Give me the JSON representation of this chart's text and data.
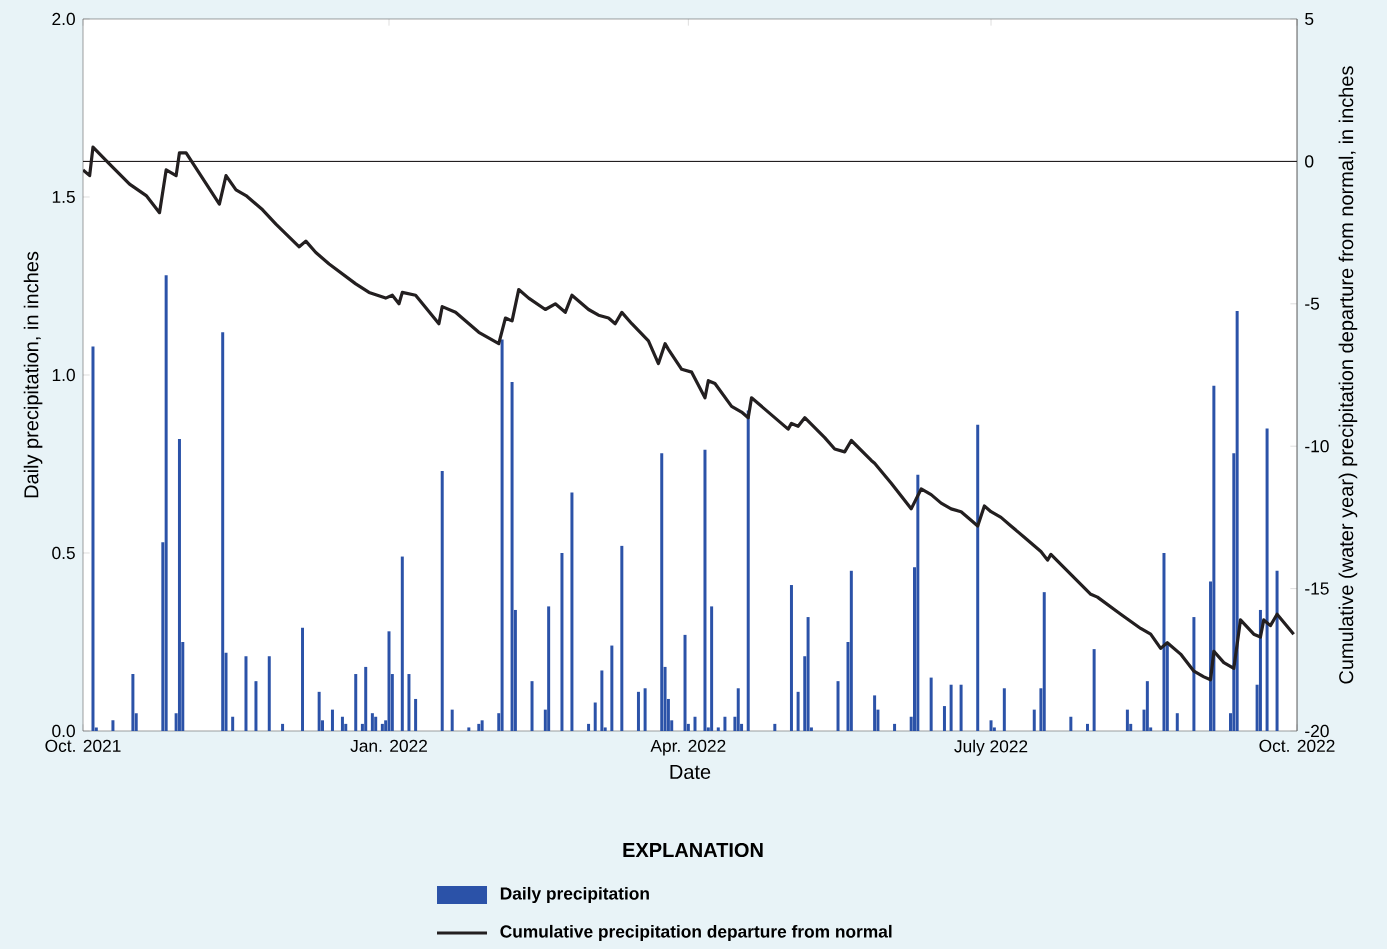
{
  "chart_data": {
    "type": "bar",
    "xlabel": "Date",
    "ylabel": "Daily precipitation, in inches",
    "y2label": "Cumulative (water year) precipitation departure from normal, in inches",
    "legend_title": "EXPLANATION",
    "legend": "bottom",
    "xlim": [
      "2021-10-01",
      "2022-10-01"
    ],
    "xticks": [
      {
        "value": "2021-10-01",
        "label": "Oct. 2021"
      },
      {
        "value": "2022-01-01",
        "label": "Jan. 2022"
      },
      {
        "value": "2022-04-01",
        "label": "Apr. 2022"
      },
      {
        "value": "2022-07-01",
        "label": "July 2022"
      },
      {
        "value": "2022-10-01",
        "label": "Oct. 2022"
      }
    ],
    "ylim": [
      0,
      2
    ],
    "yticks": [
      {
        "value": 0,
        "label": "0.0"
      },
      {
        "value": 0.5,
        "label": "0.5"
      },
      {
        "value": 1,
        "label": "1.0"
      },
      {
        "value": 1.5,
        "label": "1.5"
      },
      {
        "value": 2,
        "label": "2.0"
      }
    ],
    "y2lim": [
      -20,
      5
    ],
    "y2ticks": [
      -20,
      -15,
      -10,
      -5,
      0,
      5
    ],
    "ref_lines": [
      {
        "axis": "y2",
        "value": 0,
        "color": "#231f20"
      }
    ],
    "series": [
      {
        "name": "Daily precipitation",
        "color": "#2b52a8",
        "x": [
          "2021-10-04",
          "2021-10-05",
          "2021-10-10",
          "2021-10-16",
          "2021-10-17",
          "2021-10-25",
          "2021-10-26",
          "2021-10-29",
          "2021-10-30",
          "2021-10-31",
          "2021-11-12",
          "2021-11-13",
          "2021-11-15",
          "2021-11-19",
          "2021-11-22",
          "2021-11-26",
          "2021-11-30",
          "2021-12-06",
          "2021-12-11",
          "2021-12-12",
          "2021-12-15",
          "2021-12-18",
          "2021-12-19",
          "2021-12-22",
          "2021-12-24",
          "2021-12-25",
          "2021-12-27",
          "2021-12-28",
          "2021-12-30",
          "2021-12-31",
          "2022-01-01",
          "2022-01-02",
          "2022-01-05",
          "2022-01-07",
          "2022-01-09",
          "2022-01-17",
          "2022-01-20",
          "2022-01-25",
          "2022-01-28",
          "2022-01-29",
          "2022-02-03",
          "2022-02-04",
          "2022-02-07",
          "2022-02-08",
          "2022-02-13",
          "2022-02-17",
          "2022-02-18",
          "2022-02-22",
          "2022-02-25",
          "2022-03-02",
          "2022-03-04",
          "2022-03-06",
          "2022-03-07",
          "2022-03-09",
          "2022-03-12",
          "2022-03-17",
          "2022-03-19",
          "2022-03-24",
          "2022-03-25",
          "2022-03-26",
          "2022-03-27",
          "2022-03-31",
          "2022-04-01",
          "2022-04-03",
          "2022-04-06",
          "2022-04-07",
          "2022-04-08",
          "2022-04-10",
          "2022-04-12",
          "2022-04-15",
          "2022-04-16",
          "2022-04-17",
          "2022-04-19",
          "2022-04-27",
          "2022-05-02",
          "2022-05-04",
          "2022-05-06",
          "2022-05-07",
          "2022-05-08",
          "2022-05-16",
          "2022-05-19",
          "2022-05-20",
          "2022-05-27",
          "2022-05-28",
          "2022-06-02",
          "2022-06-07",
          "2022-06-08",
          "2022-06-09",
          "2022-06-13",
          "2022-06-17",
          "2022-06-19",
          "2022-06-22",
          "2022-06-27",
          "2022-07-01",
          "2022-07-02",
          "2022-07-05",
          "2022-07-14",
          "2022-07-16",
          "2022-07-17",
          "2022-07-25",
          "2022-07-30",
          "2022-08-01",
          "2022-08-11",
          "2022-08-12",
          "2022-08-16",
          "2022-08-17",
          "2022-08-18",
          "2022-08-22",
          "2022-08-23",
          "2022-08-26",
          "2022-08-31",
          "2022-09-05",
          "2022-09-06",
          "2022-09-11",
          "2022-09-12",
          "2022-09-13",
          "2022-09-19",
          "2022-09-20",
          "2022-09-22",
          "2022-09-25"
        ],
        "values": [
          1.08,
          0.01,
          0.03,
          0.16,
          0.05,
          0.53,
          1.28,
          0.05,
          0.82,
          0.25,
          1.12,
          0.22,
          0.04,
          0.21,
          0.14,
          0.21,
          0.02,
          0.29,
          0.11,
          0.03,
          0.06,
          0.04,
          0.02,
          0.16,
          0.02,
          0.18,
          0.05,
          0.04,
          0.02,
          0.03,
          0.28,
          0.16,
          0.49,
          0.16,
          0.09,
          0.73,
          0.06,
          0.01,
          0.02,
          0.03,
          0.05,
          1.1,
          0.98,
          0.34,
          0.14,
          0.06,
          0.35,
          0.5,
          0.67,
          0.02,
          0.08,
          0.17,
          0.01,
          0.24,
          0.52,
          0.11,
          0.12,
          0.78,
          0.18,
          0.09,
          0.03,
          0.27,
          0.02,
          0.04,
          0.79,
          0.01,
          0.35,
          0.01,
          0.04,
          0.04,
          0.12,
          0.02,
          0.9,
          0.02,
          0.41,
          0.11,
          0.21,
          0.32,
          0.01,
          0.14,
          0.25,
          0.45,
          0.1,
          0.06,
          0.02,
          0.04,
          0.46,
          0.72,
          0.15,
          0.07,
          0.13,
          0.13,
          0.86,
          0.03,
          0.01,
          0.12,
          0.06,
          0.12,
          0.39,
          0.04,
          0.02,
          0.23,
          0.06,
          0.02,
          0.06,
          0.14,
          0.01,
          0.5,
          0.25,
          0.05,
          0.32,
          0.42,
          0.97,
          0.05,
          0.78,
          1.18,
          0.13,
          0.34,
          0.85,
          0.45
        ]
      },
      {
        "name": "Cumulative precipitation departure from normal",
        "type": "line",
        "axis": "y2",
        "color": "#231f20",
        "x": [
          "2021-10-01",
          "2021-10-03",
          "2021-10-04",
          "2021-10-09",
          "2021-10-15",
          "2021-10-20",
          "2021-10-24",
          "2021-10-26",
          "2021-10-29",
          "2021-10-30",
          "2021-11-01",
          "2021-11-11",
          "2021-11-13",
          "2021-11-16",
          "2021-11-19",
          "2021-11-21",
          "2021-11-24",
          "2021-11-28",
          "2021-12-05",
          "2021-12-07",
          "2021-12-10",
          "2021-12-14",
          "2021-12-22",
          "2021-12-26",
          "2021-12-31",
          "2022-01-02",
          "2022-01-04",
          "2022-01-05",
          "2022-01-09",
          "2022-01-16",
          "2022-01-17",
          "2022-01-21",
          "2022-01-28",
          "2022-02-03",
          "2022-02-05",
          "2022-02-07",
          "2022-02-09",
          "2022-02-12",
          "2022-02-17",
          "2022-02-20",
          "2022-02-23",
          "2022-02-25",
          "2022-03-02",
          "2022-03-05",
          "2022-03-08",
          "2022-03-10",
          "2022-03-12",
          "2022-03-15",
          "2022-03-20",
          "2022-03-23",
          "2022-03-25",
          "2022-03-26",
          "2022-03-30",
          "2022-04-02",
          "2022-04-06",
          "2022-04-07",
          "2022-04-09",
          "2022-04-14",
          "2022-04-17",
          "2022-04-19",
          "2022-04-20",
          "2022-04-26",
          "2022-05-01",
          "2022-05-02",
          "2022-05-04",
          "2022-05-06",
          "2022-05-12",
          "2022-05-15",
          "2022-05-18",
          "2022-05-20",
          "2022-05-26",
          "2022-05-27",
          "2022-06-01",
          "2022-06-05",
          "2022-06-07",
          "2022-06-10",
          "2022-06-13",
          "2022-06-16",
          "2022-06-19",
          "2022-06-22",
          "2022-06-25",
          "2022-06-27",
          "2022-06-29",
          "2022-07-01",
          "2022-07-04",
          "2022-07-07",
          "2022-07-11",
          "2022-07-16",
          "2022-07-18",
          "2022-07-19",
          "2022-07-25",
          "2022-07-31",
          "2022-08-02",
          "2022-08-09",
          "2022-08-15",
          "2022-08-18",
          "2022-08-21",
          "2022-08-23",
          "2022-08-27",
          "2022-08-31",
          "2022-09-03",
          "2022-09-05",
          "2022-09-06",
          "2022-09-09",
          "2022-09-12",
          "2022-09-14",
          "2022-09-18",
          "2022-09-20",
          "2022-09-21",
          "2022-09-23",
          "2022-09-25",
          "2022-09-30"
        ],
        "values": [
          -0.3,
          -0.5,
          0.5,
          -0.1,
          -0.8,
          -1.2,
          -1.8,
          -0.3,
          -0.5,
          0.3,
          0.3,
          -1.5,
          -0.5,
          -1.0,
          -1.2,
          -1.4,
          -1.7,
          -2.2,
          -3.0,
          -2.8,
          -3.2,
          -3.6,
          -4.3,
          -4.6,
          -4.8,
          -4.7,
          -5.0,
          -4.6,
          -4.7,
          -5.7,
          -5.1,
          -5.3,
          -6.0,
          -6.4,
          -5.5,
          -5.6,
          -4.5,
          -4.8,
          -5.2,
          -5.0,
          -5.3,
          -4.7,
          -5.2,
          -5.4,
          -5.5,
          -5.7,
          -5.3,
          -5.7,
          -6.3,
          -7.1,
          -6.4,
          -6.6,
          -7.3,
          -7.4,
          -8.3,
          -7.7,
          -7.8,
          -8.6,
          -8.8,
          -9.0,
          -8.3,
          -8.9,
          -9.4,
          -9.2,
          -9.3,
          -9.0,
          -9.7,
          -10.1,
          -10.2,
          -9.8,
          -10.5,
          -10.6,
          -11.3,
          -11.9,
          -12.2,
          -11.5,
          -11.7,
          -12.0,
          -12.2,
          -12.3,
          -12.6,
          -12.8,
          -12.1,
          -12.3,
          -12.5,
          -12.8,
          -13.2,
          -13.7,
          -14.0,
          -13.8,
          -14.5,
          -15.2,
          -15.3,
          -15.9,
          -16.4,
          -16.6,
          -17.1,
          -16.9,
          -17.3,
          -17.9,
          -18.1,
          -18.2,
          -17.2,
          -17.6,
          -17.8,
          -16.1,
          -16.6,
          -16.7,
          -16.1,
          -16.3,
          -15.9,
          -16.6
        ]
      }
    ]
  }
}
